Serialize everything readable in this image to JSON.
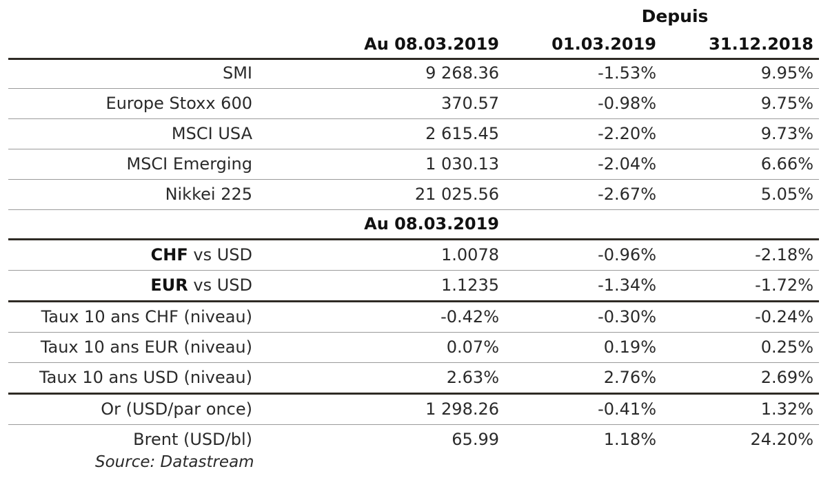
{
  "header": {
    "group_label": "Depuis",
    "col1": "Au 08.03.2019",
    "col2": "01.03.2019",
    "col3": "31.12.2018"
  },
  "equities": [
    {
      "label": "SMI",
      "v1": "9 268.36",
      "v2": "-1.53%",
      "v3": "9.95%"
    },
    {
      "label": "Europe Stoxx 600",
      "v1": "370.57",
      "v2": "-0.98%",
      "v3": "9.75%"
    },
    {
      "label": "MSCI USA",
      "v1": "2 615.45",
      "v2": "-2.20%",
      "v3": "9.73%"
    },
    {
      "label": "MSCI Emerging",
      "v1": "1 030.13",
      "v2": "-2.04%",
      "v3": "6.66%"
    },
    {
      "label": "Nikkei 225",
      "v1": "21 025.56",
      "v2": "-2.67%",
      "v3": "5.05%"
    }
  ],
  "subheader": {
    "col1": "Au 08.03.2019"
  },
  "fx": [
    {
      "label_bold": "CHF",
      "label_rest": " vs USD",
      "v1": "1.0078",
      "v2": "-0.96%",
      "v3": "-2.18%"
    },
    {
      "label_bold": "EUR",
      "label_rest": " vs USD",
      "v1": "1.1235",
      "v2": "-1.34%",
      "v3": "-1.72%"
    }
  ],
  "rates": [
    {
      "label": "Taux 10 ans CHF (niveau)",
      "v1": "-0.42%",
      "v2": "-0.30%",
      "v3": "-0.24%"
    },
    {
      "label": "Taux 10 ans EUR (niveau)",
      "v1": "0.07%",
      "v2": "0.19%",
      "v3": "0.25%"
    },
    {
      "label": "Taux 10 ans USD (niveau)",
      "v1": "2.63%",
      "v2": "2.76%",
      "v3": "2.69%"
    }
  ],
  "commodities": [
    {
      "label": "Or (USD/par once)",
      "v1": "1 298.26",
      "v2": "-0.41%",
      "v3": "1.32%"
    },
    {
      "label": "Brent (USD/bl)",
      "v1": "65.99",
      "v2": "1.18%",
      "v3": "24.20%"
    }
  ],
  "source": "Source: Datastream"
}
